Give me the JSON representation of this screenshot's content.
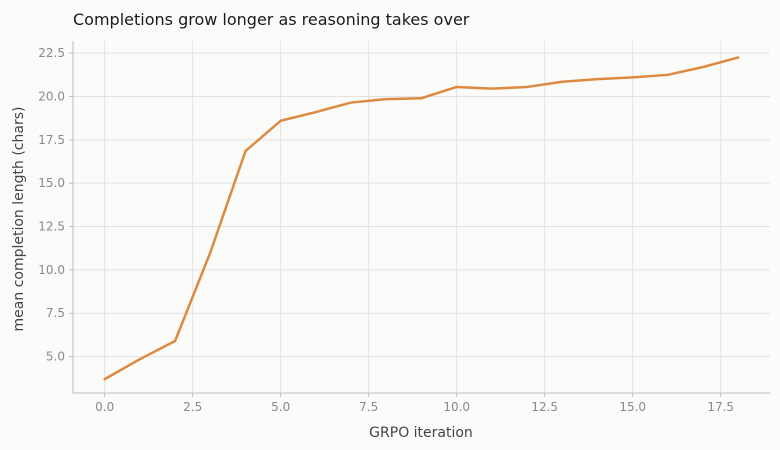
{
  "chart_data": {
    "type": "line",
    "title": "Completions grow longer as reasoning takes over",
    "xlabel": "GRPO iteration",
    "ylabel": "mean completion length (chars)",
    "xlim": [
      -0.9,
      18.9
    ],
    "ylim": [
      2.9,
      23.2
    ],
    "xticks": [
      0.0,
      2.5,
      5.0,
      7.5,
      10.0,
      12.5,
      15.0,
      17.5
    ],
    "xtick_labels": [
      "0.0",
      "2.5",
      "5.0",
      "7.5",
      "10.0",
      "12.5",
      "15.0",
      "17.5"
    ],
    "yticks": [
      5.0,
      7.5,
      10.0,
      12.5,
      15.0,
      17.5,
      20.0,
      22.5
    ],
    "ytick_labels": [
      "5.0",
      "7.5",
      "10.0",
      "12.5",
      "15.0",
      "17.5",
      "20.0",
      "22.5"
    ],
    "grid": true,
    "x": [
      0,
      1,
      2,
      3,
      4,
      5,
      6,
      7,
      8,
      9,
      10,
      11,
      12,
      13,
      14,
      15,
      16,
      17,
      18
    ],
    "series": [
      {
        "color": "#dc8a40",
        "values": [
          3.7,
          4.85,
          5.9,
          11.0,
          16.85,
          18.6,
          19.1,
          19.65,
          19.85,
          19.9,
          20.55,
          20.45,
          20.55,
          20.85,
          21.0,
          21.1,
          21.25,
          21.7,
          22.25
        ]
      }
    ]
  }
}
